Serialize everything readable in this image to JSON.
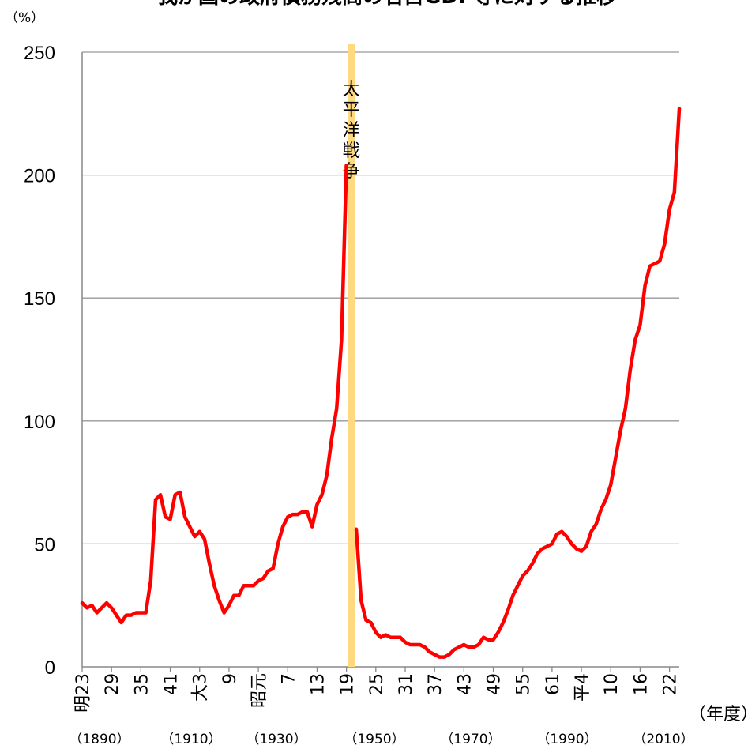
{
  "chart_data": {
    "type": "line",
    "title": "我が国の政府債務残高の名目GDP等に対する推移",
    "ylabel": "（%）",
    "xlabel": "（年度）",
    "ylim": [
      0,
      250
    ],
    "y_ticks": [
      0,
      50,
      100,
      150,
      200,
      250
    ],
    "grid": true,
    "legend": "none",
    "line_color": "#ff0000",
    "war_band_color": "#ffd980",
    "war_label": "太平洋戦争",
    "x_tick_labels": [
      "明23",
      "29",
      "35",
      "41",
      "大3",
      "9",
      "昭元",
      "7",
      "13",
      "19",
      "25",
      "31",
      "37",
      "43",
      "49",
      "55",
      "61",
      "平4",
      "10",
      "16",
      "22"
    ],
    "era_year_labels": [
      "（1890）",
      "（1910）",
      "（1930）",
      "（1950）",
      "（1970）",
      "（1990）",
      "（2010）"
    ],
    "pre_war_series": {
      "x": [
        1890,
        1891,
        1892,
        1893,
        1894,
        1895,
        1896,
        1897,
        1898,
        1899,
        1900,
        1901,
        1902,
        1903,
        1904,
        1905,
        1906,
        1907,
        1908,
        1909,
        1910,
        1911,
        1912,
        1913,
        1914,
        1915,
        1916,
        1917,
        1918,
        1919,
        1920,
        1921,
        1922,
        1923,
        1924,
        1925,
        1926,
        1927,
        1928,
        1929,
        1930,
        1931,
        1932,
        1933,
        1934,
        1935,
        1936,
        1937,
        1938,
        1939,
        1940,
        1941,
        1942,
        1943,
        1944
      ],
      "values": [
        26,
        24,
        25,
        22,
        24,
        26,
        24,
        21,
        18,
        21,
        21,
        22,
        22,
        22,
        35,
        68,
        70,
        61,
        60,
        70,
        71,
        61,
        57,
        53,
        55,
        52,
        42,
        33,
        27,
        22,
        25,
        29,
        29,
        33,
        33,
        33,
        35,
        36,
        39,
        40,
        50,
        57,
        61,
        62,
        62,
        63,
        63,
        57,
        66,
        70,
        78,
        93,
        105,
        133,
        204
      ]
    },
    "post_war_series": {
      "x": [
        1946,
        1947,
        1948,
        1949,
        1950,
        1951,
        1952,
        1953,
        1954,
        1955,
        1956,
        1957,
        1958,
        1959,
        1960,
        1961,
        1962,
        1963,
        1964,
        1965,
        1966,
        1967,
        1968,
        1969,
        1970,
        1971,
        1972,
        1973,
        1974,
        1975,
        1976,
        1977,
        1978,
        1979,
        1980,
        1981,
        1982,
        1983,
        1984,
        1985,
        1986,
        1987,
        1988,
        1989,
        1990,
        1991,
        1992,
        1993,
        1994,
        1995,
        1996,
        1997,
        1998,
        1999,
        2000,
        2001,
        2002,
        2003,
        2004,
        2005,
        2006,
        2007,
        2008,
        2009,
        2010,
        2011,
        2012
      ],
      "values": [
        56,
        27,
        19,
        18,
        14,
        12,
        13,
        12,
        12,
        12,
        10,
        9,
        9,
        9,
        8,
        6,
        5,
        4,
        4,
        5,
        7,
        8,
        9,
        8,
        8,
        9,
        12,
        11,
        11,
        14,
        18,
        23,
        29,
        33,
        37,
        39,
        42,
        46,
        48,
        49,
        50,
        54,
        55,
        53,
        50,
        48,
        47,
        49,
        55,
        58,
        64,
        68,
        74,
        85,
        96,
        105,
        121,
        133,
        139,
        155,
        163,
        164,
        165,
        172,
        186,
        193,
        227
      ]
    }
  }
}
